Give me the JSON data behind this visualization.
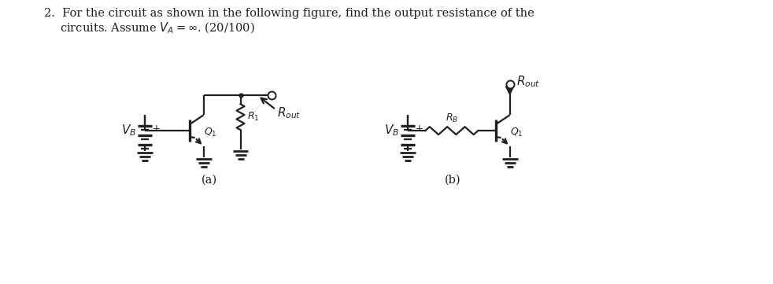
{
  "bg_color": "#ffffff",
  "text_color": "#231f20",
  "title_line1": "2.  For the circuit as shown in the following figure, find the output resistance of the",
  "title_line2": "circuits. Assume $V_A = \\infty$. (20/100)",
  "label_a": "(a)",
  "label_b": "(b)",
  "fig_width": 9.82,
  "fig_height": 3.61
}
